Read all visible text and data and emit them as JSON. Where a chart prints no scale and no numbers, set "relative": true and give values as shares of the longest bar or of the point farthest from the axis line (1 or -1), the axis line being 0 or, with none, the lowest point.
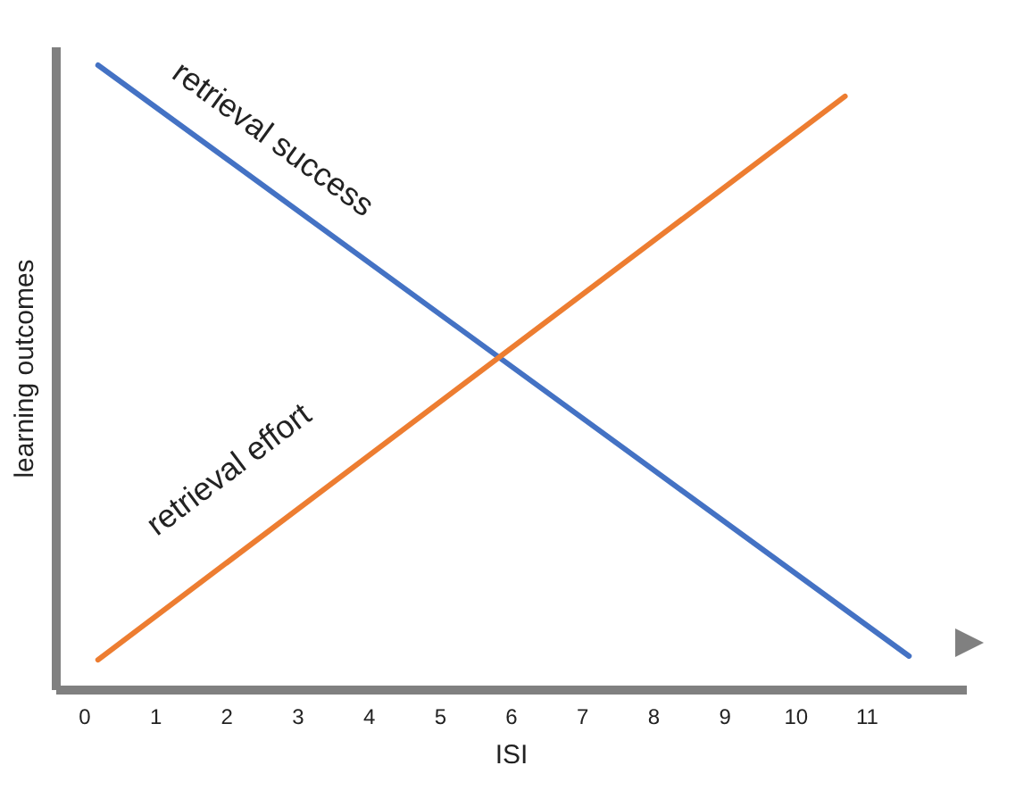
{
  "chart_data": {
    "type": "line",
    "relative": true,
    "xlabel": "ISI",
    "ylabel": "learning outcomes",
    "x": [
      0.2,
      11.6
    ],
    "xlim": [
      -0.4,
      12.4
    ],
    "xticks": [
      0,
      1,
      2,
      3,
      4,
      5,
      6,
      7,
      8,
      9,
      10,
      11
    ],
    "grid": false,
    "legend": false,
    "marker": "none",
    "line_style": "solid",
    "series": [
      {
        "name": "retrieval success",
        "color": "#4472c4",
        "values": [
          1,
          0.053
        ]
      },
      {
        "name": "retrieval effort",
        "color": "#ed7d31",
        "x": [
          0.2,
          10.7
        ],
        "values": [
          0.047,
          0.95
        ]
      }
    ]
  }
}
